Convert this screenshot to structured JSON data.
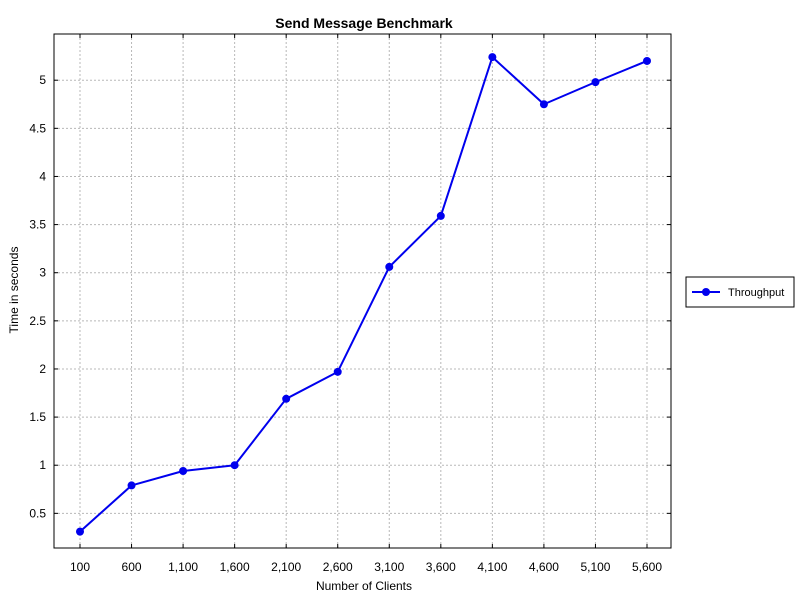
{
  "chart_data": {
    "type": "line",
    "title": "Send Message Benchmark",
    "xlabel": "Number of Clients",
    "ylabel": "Time in seconds",
    "categories": [
      "100",
      "600",
      "1,100",
      "1,600",
      "2,100",
      "2,600",
      "3,100",
      "3,600",
      "4,100",
      "4,600",
      "5,100",
      "5,600"
    ],
    "x": [
      100,
      600,
      1100,
      1600,
      2100,
      2600,
      3100,
      3600,
      4100,
      4600,
      5100,
      5600
    ],
    "yticks": [
      0.5,
      1,
      1.5,
      2,
      2.5,
      3,
      3.5,
      4,
      4.5,
      5
    ],
    "ytick_labels": [
      "0.5",
      "1",
      "1.5",
      "2",
      "2.5",
      "3",
      "3.5",
      "4",
      "4.5",
      "5"
    ],
    "ylim": [
      0.14,
      5.48
    ],
    "grid": true,
    "legend_position": "right",
    "series": [
      {
        "name": "Throughput",
        "color": "#0000ee",
        "marker": "circle",
        "values": [
          0.31,
          0.79,
          0.94,
          1.0,
          1.69,
          1.97,
          3.06,
          3.59,
          5.24,
          4.75,
          4.98,
          5.2
        ]
      }
    ]
  }
}
